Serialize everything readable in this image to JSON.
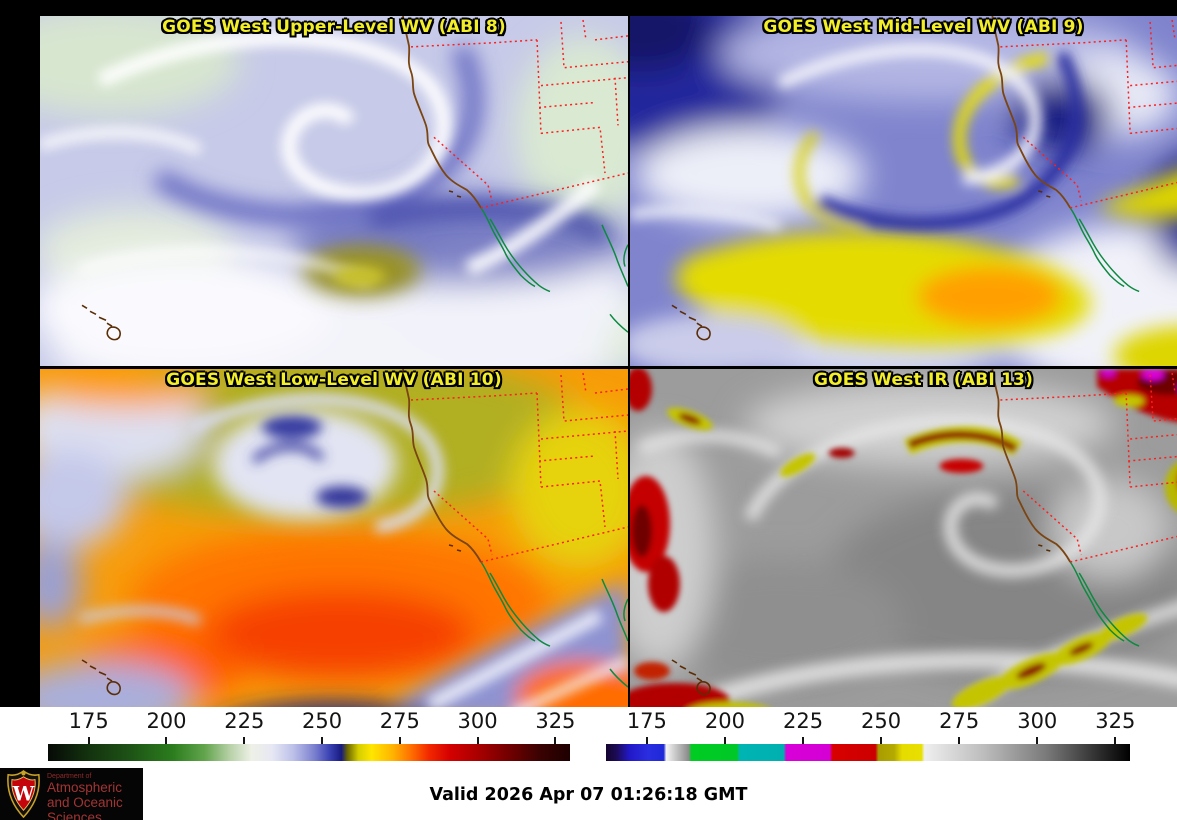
{
  "panels": [
    {
      "id": "abi8",
      "title": "GOES West Upper-Level WV (ABI 8)"
    },
    {
      "id": "abi9",
      "title": "GOES West Mid-Level WV (ABI 9)"
    },
    {
      "id": "abi10",
      "title": "GOES West Low-Level WV (ABI 10)"
    },
    {
      "id": "abi13",
      "title": "GOES West IR (ABI 13)"
    }
  ],
  "colorbars": [
    {
      "id": "wv",
      "name": "water-vapor-brightness-temperature-scale",
      "ticks": [
        "175",
        "200",
        "225",
        "250",
        "275",
        "300",
        "325"
      ]
    },
    {
      "id": "ir",
      "name": "infrared-brightness-temperature-scale",
      "ticks": [
        "175",
        "200",
        "225",
        "250",
        "275",
        "300",
        "325"
      ]
    }
  ],
  "footer": {
    "valid_time": "Valid 2026 Apr 07 01:26:18 GMT"
  },
  "logo": {
    "department": "Department of",
    "name_line1": "Atmospheric",
    "name_line2": "and Oceanic Sciences",
    "monogram": "W"
  },
  "colors": {
    "title_yellow": "#f2ee2a",
    "logo_red": "#a23434",
    "border_red": "#ff1e1e",
    "coast_brown": "#7a4512",
    "mexico_green": "#0c8a40"
  }
}
